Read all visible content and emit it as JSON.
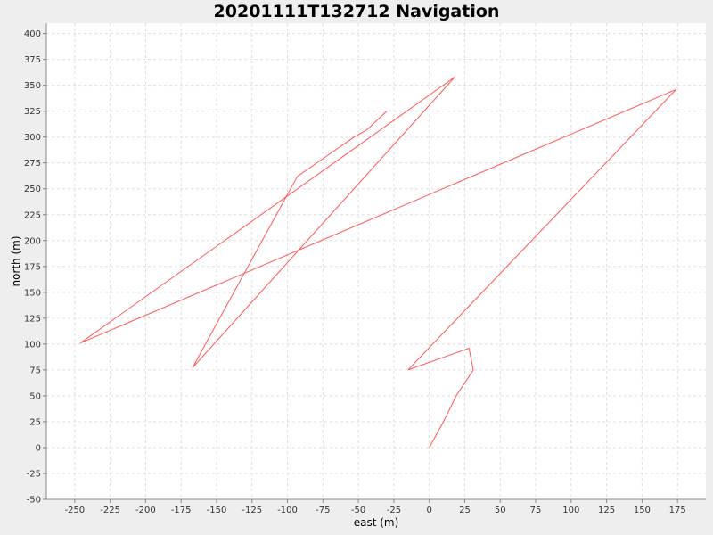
{
  "chart_data": {
    "type": "line",
    "title": "20201111T132712 Navigation",
    "xlabel": "east (m)",
    "ylabel": "north (m)",
    "xlim": [
      -270,
      195
    ],
    "ylim": [
      -50,
      410
    ],
    "xticks": [
      -250,
      -225,
      -200,
      -175,
      -150,
      -125,
      -100,
      -75,
      -50,
      -25,
      0,
      25,
      50,
      75,
      100,
      125,
      150,
      175
    ],
    "yticks": [
      -50,
      -25,
      0,
      25,
      50,
      75,
      100,
      125,
      150,
      175,
      200,
      225,
      250,
      275,
      300,
      325,
      350,
      375,
      400
    ],
    "grid": true,
    "legend": "none",
    "series": [
      {
        "color": "#ff5555",
        "x": [
          0,
          10,
          19,
          31,
          28,
          -15,
          174,
          -246,
          18,
          -167,
          -93,
          -53,
          -44,
          -30
        ],
        "y": [
          0,
          25,
          50,
          75,
          96,
          75,
          346,
          101,
          358,
          77,
          262,
          300,
          307,
          325
        ]
      }
    ]
  }
}
